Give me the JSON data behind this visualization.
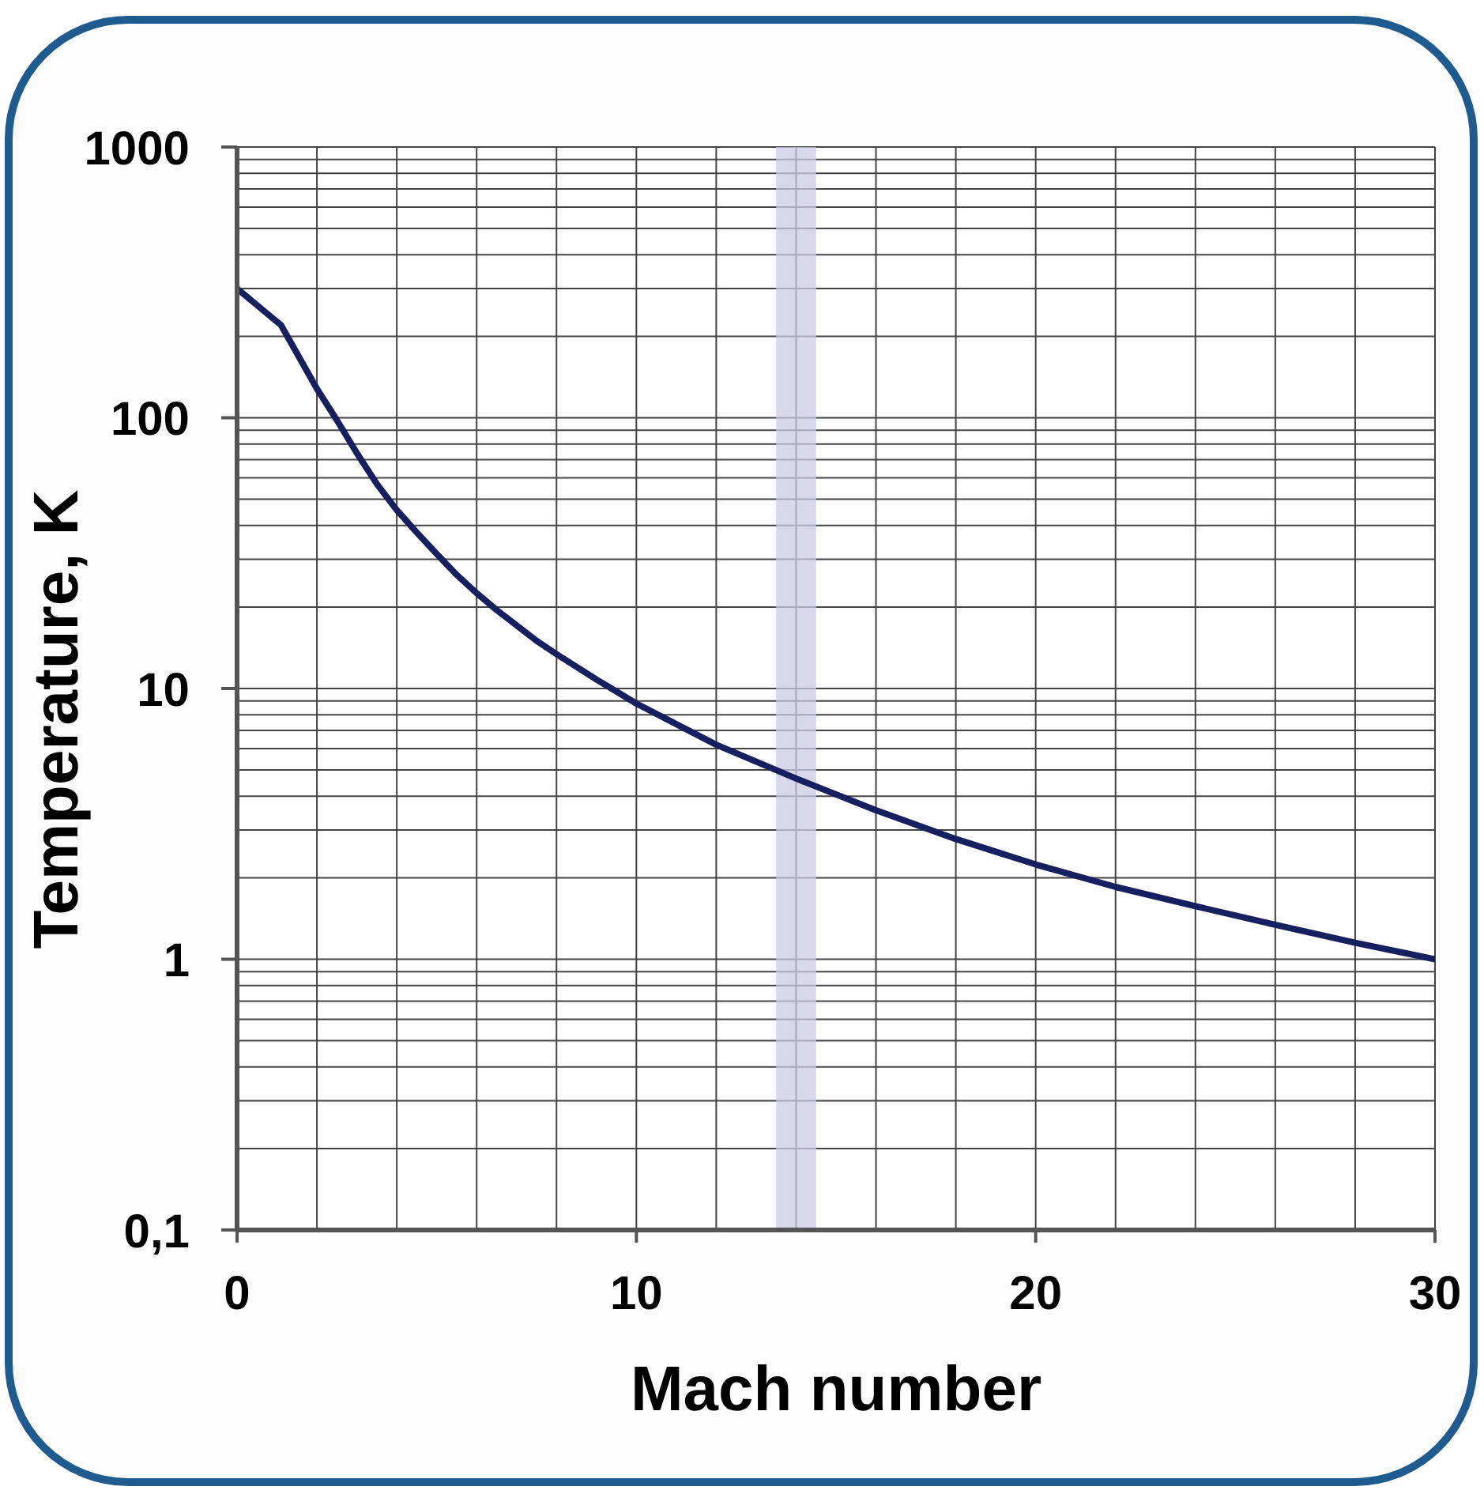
{
  "chart_data": {
    "type": "line",
    "xlabel": "Mach number",
    "ylabel": "Temperature, K",
    "x": [
      0,
      1.1,
      2,
      2.5,
      3,
      3.5,
      4,
      4.5,
      5,
      5.5,
      6,
      6.5,
      7,
      7.5,
      8,
      9,
      10,
      12,
      14,
      16,
      18,
      20,
      22,
      24,
      26,
      28,
      30
    ],
    "series": [
      {
        "color": "#17205e",
        "values": [
          300,
          220,
          128,
          98,
          74,
          57,
          45.6,
          37.7,
          31.4,
          26.3,
          22.5,
          19.5,
          17.1,
          15.0,
          13.4,
          10.8,
          8.8,
          6.2,
          4.65,
          3.55,
          2.78,
          2.24,
          1.85,
          1.57,
          1.34,
          1.15,
          1.0
        ]
      }
    ],
    "xlim": [
      0,
      30
    ],
    "xticks": [
      0,
      {
        "value": 2,
        "label": null
      },
      {
        "value": 4,
        "label": null
      },
      {
        "value": 6,
        "label": null
      },
      {
        "value": 8,
        "label": null
      },
      10,
      {
        "value": 12,
        "label": null
      },
      {
        "value": 14,
        "label": null
      },
      {
        "value": 16,
        "label": null
      },
      {
        "value": 18,
        "label": null
      },
      20,
      {
        "value": 22,
        "label": null
      },
      {
        "value": 24,
        "label": null
      },
      {
        "value": 26,
        "label": null
      },
      {
        "value": 28,
        "label": null
      },
      30
    ],
    "ylim": [
      0.1,
      1000
    ],
    "yticks": [
      {
        "value": 0.1,
        "label": "0,1"
      },
      {
        "value": 0.2,
        "label": null
      },
      {
        "value": 0.3,
        "label": null
      },
      {
        "value": 0.4,
        "label": null
      },
      {
        "value": 0.5,
        "label": null
      },
      {
        "value": 0.6,
        "label": null
      },
      {
        "value": 0.7,
        "label": null
      },
      {
        "value": 0.8,
        "label": null
      },
      {
        "value": 0.9,
        "label": null
      },
      1,
      {
        "value": 2,
        "label": null
      },
      {
        "value": 3,
        "label": null
      },
      {
        "value": 4,
        "label": null
      },
      {
        "value": 5,
        "label": null
      },
      {
        "value": 6,
        "label": null
      },
      {
        "value": 7,
        "label": null
      },
      {
        "value": 8,
        "label": null
      },
      {
        "value": 9,
        "label": null
      },
      10,
      {
        "value": 20,
        "label": null
      },
      {
        "value": 30,
        "label": null
      },
      {
        "value": 40,
        "label": null
      },
      {
        "value": 50,
        "label": null
      },
      {
        "value": 60,
        "label": null
      },
      {
        "value": 70,
        "label": null
      },
      {
        "value": 80,
        "label": null
      },
      {
        "value": 90,
        "label": null
      },
      100,
      {
        "value": 200,
        "label": null
      },
      {
        "value": 300,
        "label": null
      },
      {
        "value": 400,
        "label": null
      },
      {
        "value": 500,
        "label": null
      },
      {
        "value": 600,
        "label": null
      },
      {
        "value": 700,
        "label": null
      },
      {
        "value": 800,
        "label": null
      },
      {
        "value": 900,
        "label": null
      },
      1000
    ],
    "log": true,
    "grid": true,
    "bands": [
      {
        "axis": "x",
        "from": 13.5,
        "to": 14.5,
        "color": "#cbcae6"
      }
    ]
  }
}
